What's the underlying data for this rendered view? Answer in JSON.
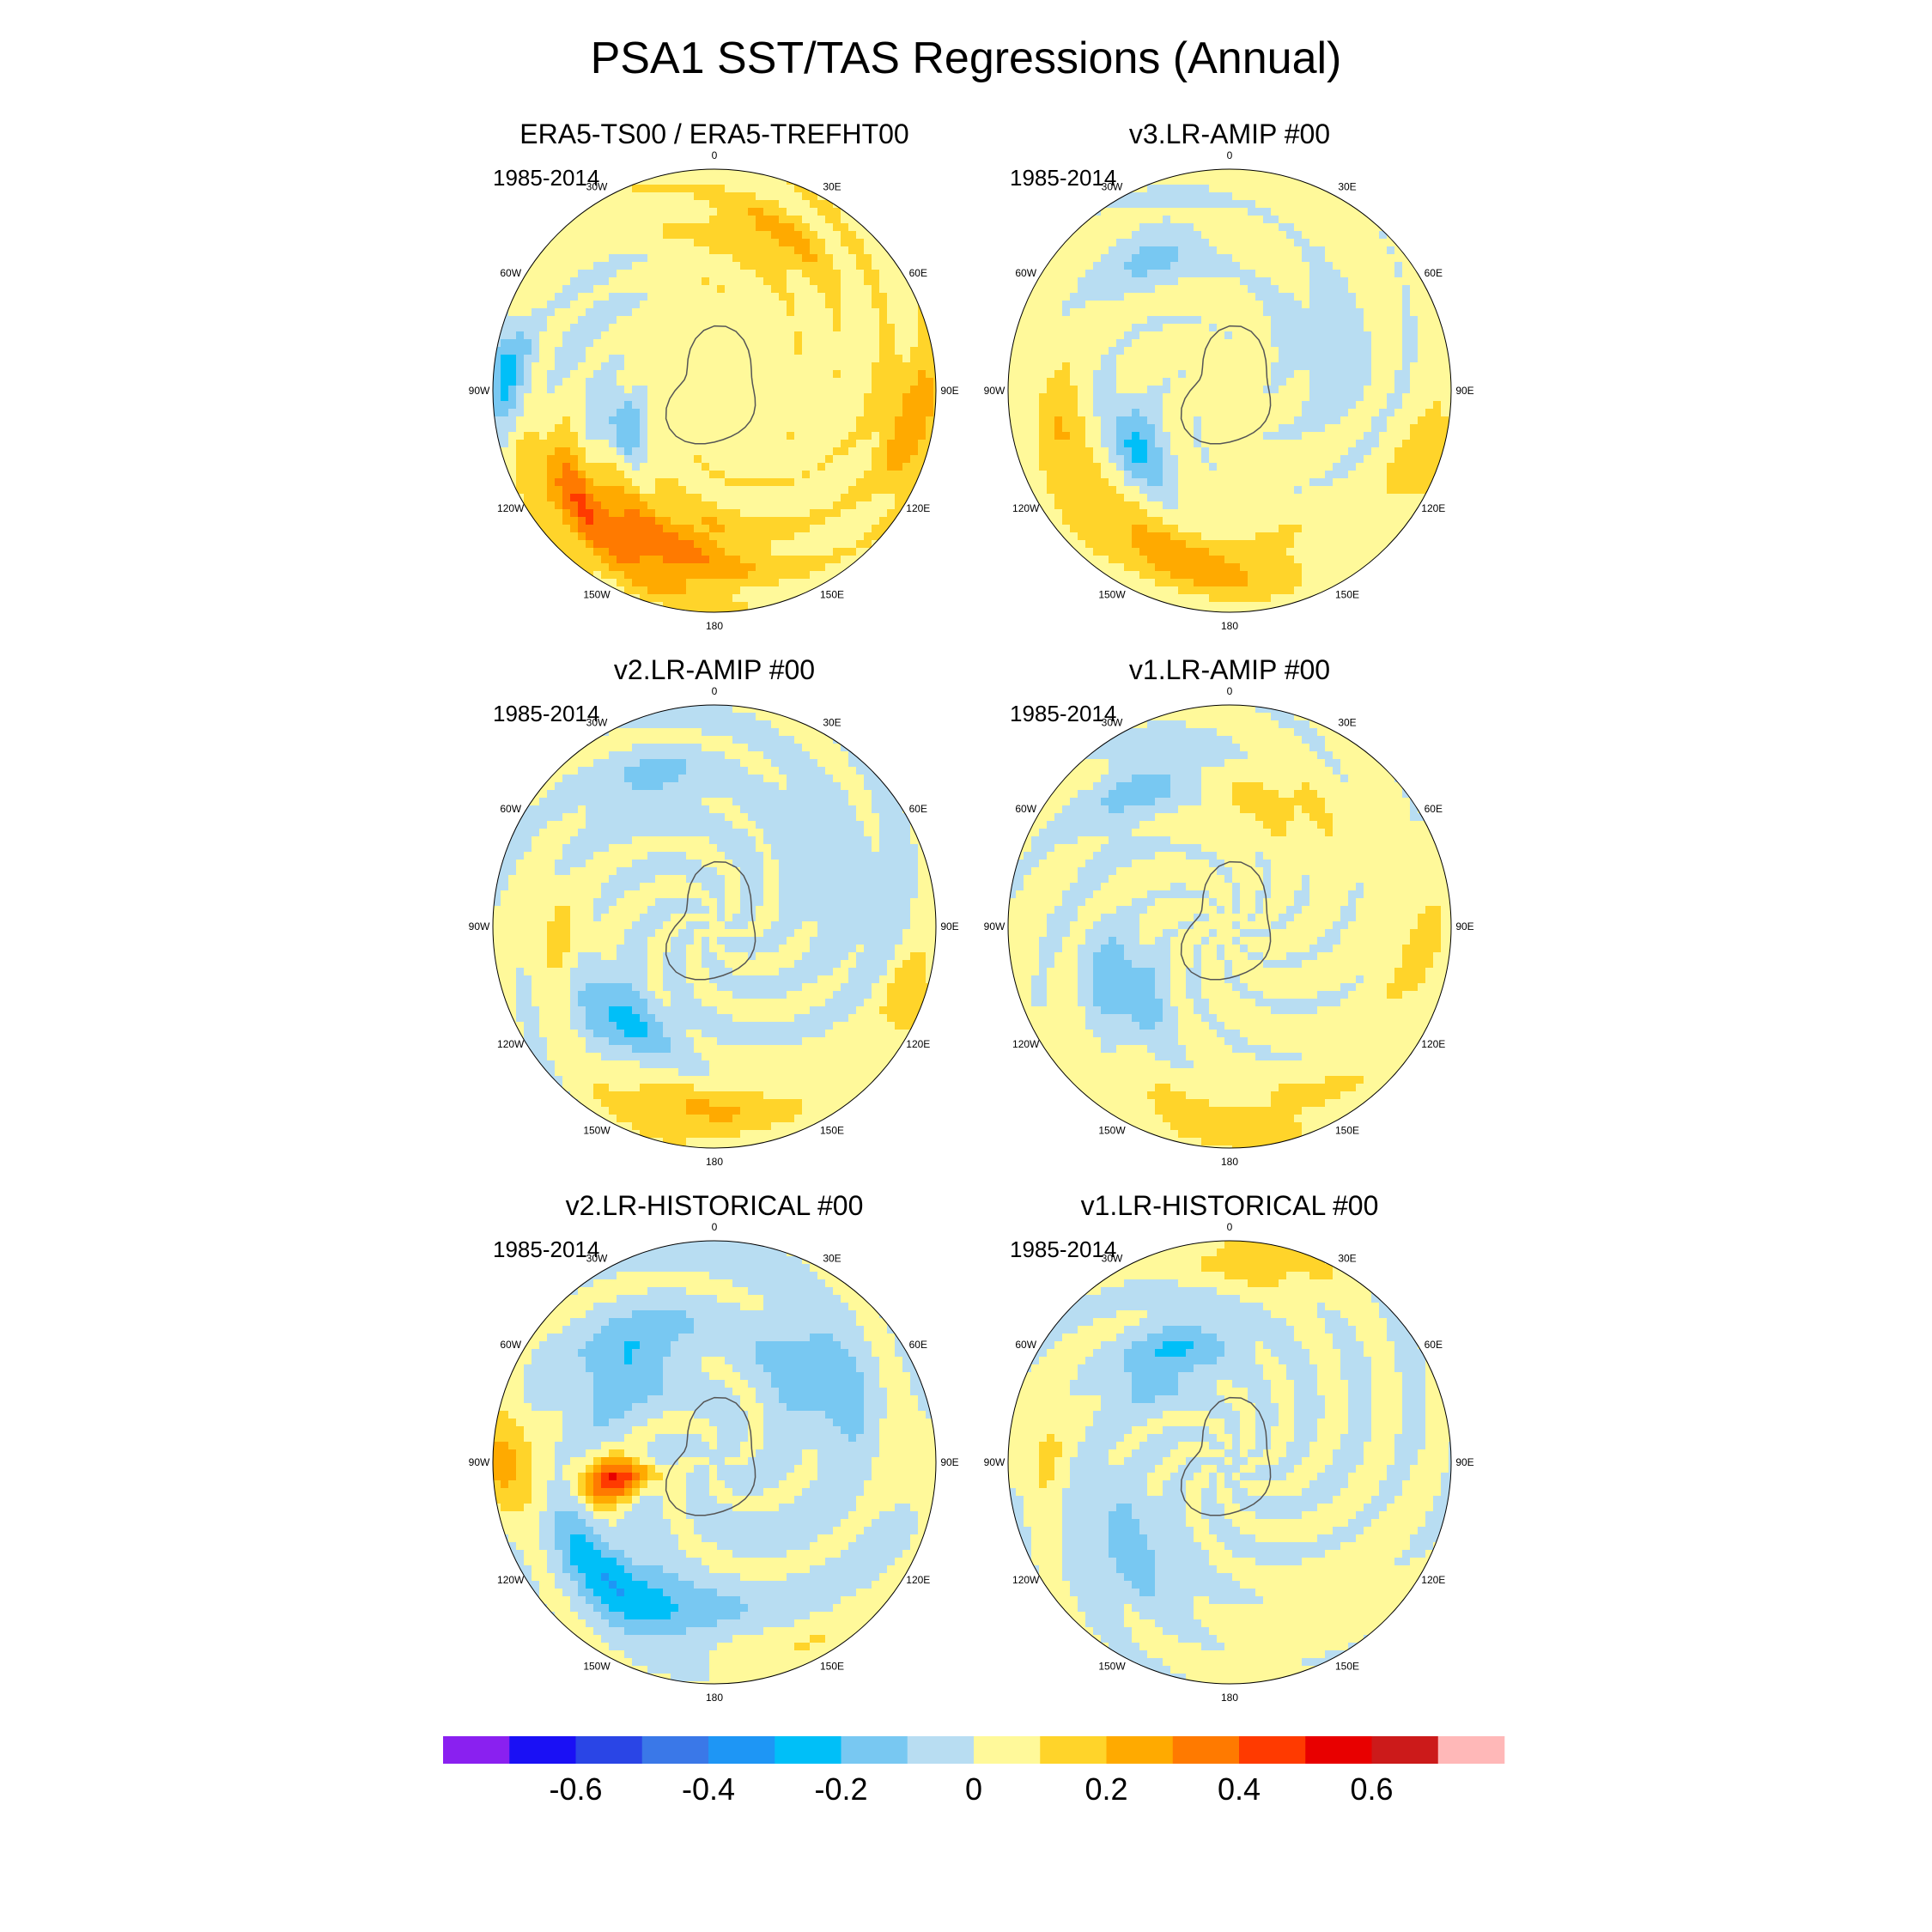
{
  "title": "PSA1 SST/TAS Regressions (Annual)",
  "chart_data": {
    "type": "polar-contour-map",
    "title": "PSA1 SST/TAS Regressions (Annual)",
    "projection": "south-polar-stereographic",
    "longitude_labels": [
      "0",
      "30E",
      "60E",
      "90E",
      "120E",
      "150E",
      "180",
      "150W",
      "120W",
      "90W",
      "60W",
      "30W"
    ],
    "panels": [
      {
        "name": "ERA5-TS00 / ERA5-TREFHT00",
        "period": "1985-2014",
        "pattern": "era5"
      },
      {
        "name": "v3.LR-AMIP  #00",
        "period": "1985-2014",
        "pattern": "v3amip"
      },
      {
        "name": "v2.LR-AMIP  #00",
        "period": "1985-2014",
        "pattern": "v2amip"
      },
      {
        "name": "v1.LR-AMIP  #00",
        "period": "1985-2014",
        "pattern": "v1amip"
      },
      {
        "name": "v2.LR-HISTORICAL  #00",
        "period": "1985-2014",
        "pattern": "v2hist"
      },
      {
        "name": "v1.LR-HISTORICAL  #00",
        "period": "1985-2014",
        "pattern": "v1hist"
      }
    ],
    "colorbar": {
      "levels": [
        -0.7,
        -0.6,
        -0.5,
        -0.4,
        -0.3,
        -0.2,
        -0.1,
        0,
        0.1,
        0.2,
        0.3,
        0.4,
        0.5,
        0.6,
        0.7
      ],
      "tick_labels": [
        "-0.6",
        "-0.4",
        "-0.2",
        "0",
        "0.2",
        "0.4",
        "0.6"
      ],
      "tick_values": [
        -0.6,
        -0.4,
        -0.2,
        0,
        0.2,
        0.4,
        0.6
      ],
      "colors": [
        "#8a20f0",
        "#1a10f5",
        "#2a45e6",
        "#3a78e8",
        "#1e96f5",
        "#00bff8",
        "#78c8f2",
        "#b8ddf2",
        "#fff99a",
        "#ffd42a",
        "#ffaa00",
        "#ff7a00",
        "#ff3a00",
        "#e80000",
        "#cc1a1a",
        "#ffb8b8"
      ]
    }
  }
}
